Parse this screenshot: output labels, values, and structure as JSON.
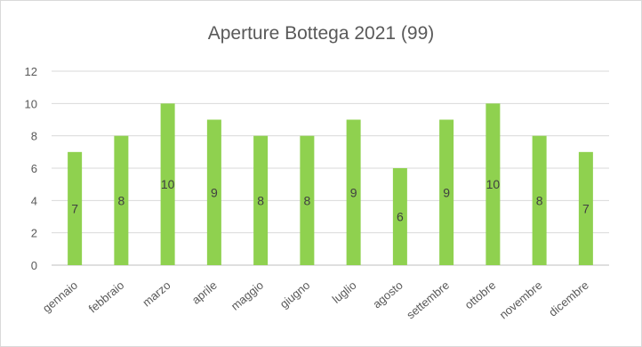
{
  "chart_data": {
    "type": "bar",
    "title": "Aperture Bottega 2021 (99)",
    "xlabel": "",
    "ylabel": "",
    "categories": [
      "gennaio",
      "febbraio",
      "marzo",
      "aprile",
      "maggio",
      "giugno",
      "luglio",
      "agosto",
      "settembre",
      "ottobre",
      "novembre",
      "dicembre"
    ],
    "values": [
      7,
      8,
      10,
      9,
      8,
      8,
      9,
      6,
      9,
      10,
      8,
      7
    ],
    "data_labels": [
      "7",
      "8",
      "10",
      "9",
      "8",
      "8",
      "9",
      "6",
      "9",
      "10",
      "8",
      "7"
    ],
    "ylim": [
      0,
      12
    ],
    "yticks": [
      "0",
      "2",
      "4",
      "6",
      "8",
      "10",
      "12"
    ],
    "grid": true,
    "legend": "none",
    "colors": {
      "bar": "#8fd14f",
      "grid": "#d9d9d9",
      "text": "#595959"
    }
  }
}
